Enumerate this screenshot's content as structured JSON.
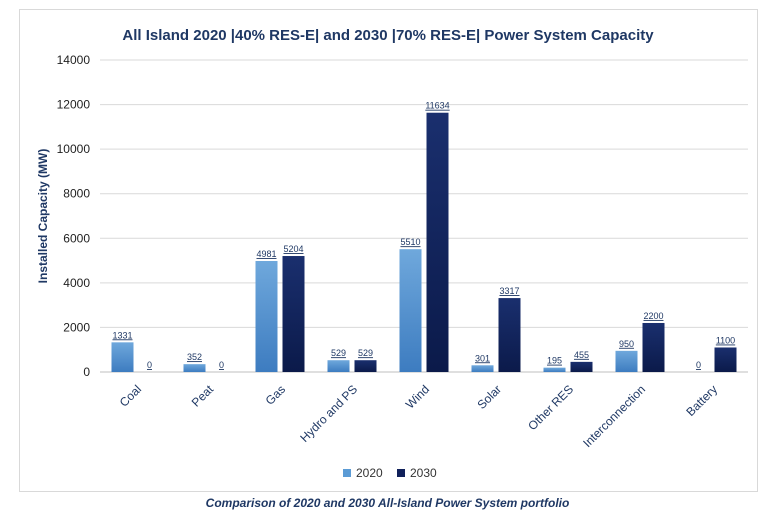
{
  "caption": "Comparison of 2020 and 2030 All-Island Power System portfolio",
  "chart_data": {
    "type": "bar",
    "title": "All Island 2020 |40% RES-E| and 2030 |70% RES-E| Power System Capacity",
    "xlabel": "",
    "ylabel": "Installed Capacity (MW)",
    "ylim": [
      0,
      14000
    ],
    "yticks": [
      0,
      2000,
      4000,
      6000,
      8000,
      10000,
      12000,
      14000
    ],
    "grid": true,
    "legend_position": "bottom",
    "categories": [
      "Coal",
      "Peat",
      "Gas",
      "Hydro and PS",
      "Wind",
      "Solar",
      "Other RES",
      "Interconnection",
      "Battery"
    ],
    "series": [
      {
        "name": "2020",
        "color": "#5b9bd5",
        "values": [
          1331,
          352,
          4981,
          529,
          5510,
          301,
          195,
          950,
          0
        ]
      },
      {
        "name": "2030",
        "color": "#10205a",
        "values": [
          0,
          0,
          5204,
          529,
          11634,
          3317,
          455,
          2200,
          1100
        ]
      }
    ]
  }
}
